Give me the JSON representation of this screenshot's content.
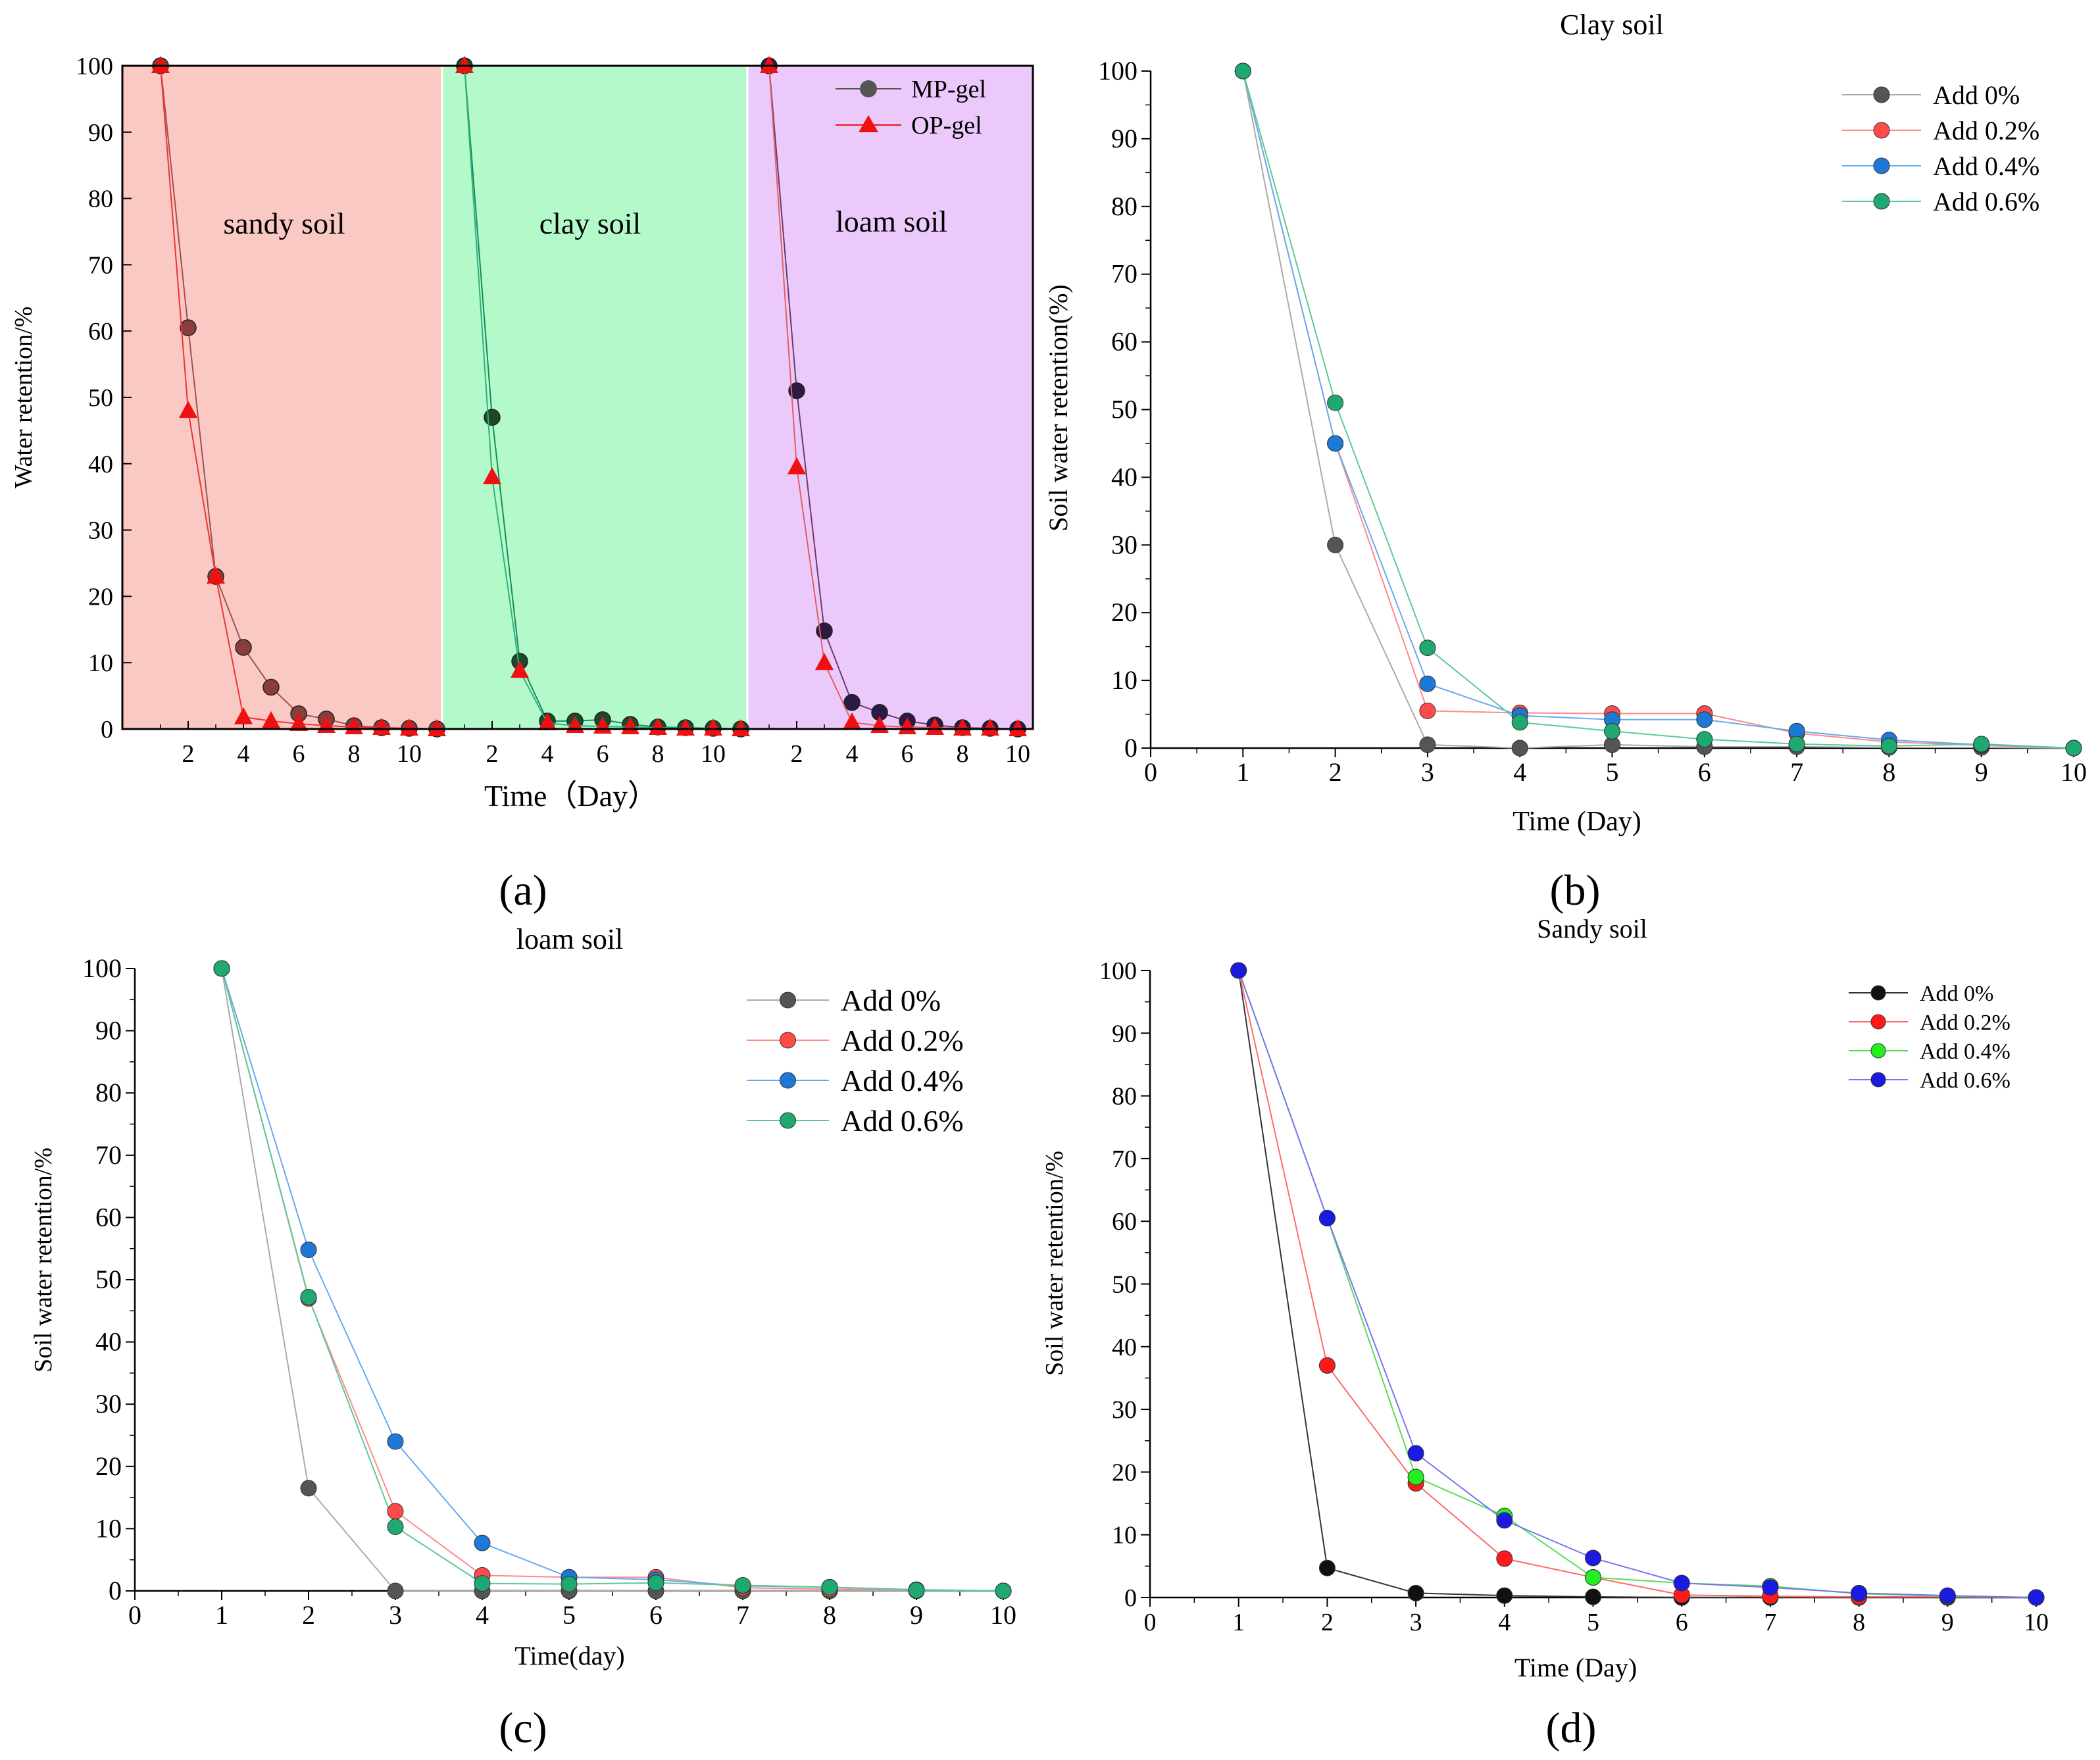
{
  "chart_data": [
    {
      "id": "a",
      "type": "line",
      "panel_label": "(a)",
      "title": "",
      "xlabel": "Time（Day）",
      "ylabel": "Water retention/%",
      "ylim": [
        0,
        100
      ],
      "yticks": [
        0,
        10,
        20,
        30,
        40,
        50,
        60,
        70,
        80,
        90,
        100
      ],
      "xticks": [
        "2",
        "4",
        "6",
        "8",
        "10"
      ],
      "regions": [
        {
          "label": "sandy soil",
          "color": "#fbc9c3",
          "day_range": [
            0,
            11.5
          ]
        },
        {
          "label": "clay soil",
          "color": "#b3f9c9",
          "day_range": [
            0,
            11.5
          ]
        },
        {
          "label": "loam soil",
          "color": "#ecc9fb",
          "day_range": [
            0,
            10.2
          ]
        }
      ],
      "legend": [
        {
          "name": "MP-gel",
          "marker": "circle",
          "color": "#555555"
        },
        {
          "name": "OP-gel",
          "marker": "triangle",
          "color": "#ee1111"
        }
      ],
      "series": [
        {
          "name": "MP-gel",
          "region": 0,
          "marker_color": "#8a3d3d",
          "line_color": "#a05050",
          "x": [
            1,
            2,
            3,
            4,
            5,
            6,
            7,
            8,
            9,
            10,
            11
          ],
          "y": [
            100,
            60.5,
            23,
            12.3,
            6.3,
            2.3,
            1.5,
            0.5,
            0.2,
            0.1,
            0
          ]
        },
        {
          "name": "OP-gel",
          "region": 0,
          "marker_color": "#ee1111",
          "line_color": "#ee3333",
          "x": [
            1,
            2,
            3,
            4,
            5,
            6,
            7,
            8,
            9,
            10,
            11
          ],
          "y": [
            100,
            48,
            23,
            1.8,
            1.2,
            0.8,
            0.5,
            0.3,
            0.2,
            0.1,
            0
          ]
        },
        {
          "name": "MP-gel",
          "region": 1,
          "marker_color": "#1a4a2a",
          "line_color": "#1a8a5a",
          "x": [
            1,
            2,
            3,
            4,
            5,
            6,
            7,
            8,
            9,
            10,
            11
          ],
          "y": [
            100,
            47,
            10.2,
            1.2,
            1.2,
            1.4,
            0.7,
            0.3,
            0.2,
            0.1,
            0
          ]
        },
        {
          "name": "OP-gel",
          "region": 1,
          "marker_color": "#ee1111",
          "line_color": "#30b080",
          "x": [
            1,
            2,
            3,
            4,
            5,
            6,
            7,
            8,
            9,
            10,
            11
          ],
          "y": [
            100,
            38,
            8.8,
            0.9,
            0.5,
            0.4,
            0.3,
            0.2,
            0.1,
            0.1,
            0
          ]
        },
        {
          "name": "MP-gel",
          "region": 2,
          "marker_color": "#2a1a45",
          "line_color": "#6a3a6a",
          "x": [
            1,
            2,
            3,
            4,
            5,
            6,
            7,
            8,
            9,
            10
          ],
          "y": [
            100,
            51,
            14.8,
            4,
            2.5,
            1.2,
            0.6,
            0.2,
            0.1,
            0
          ]
        },
        {
          "name": "OP-gel",
          "region": 2,
          "marker_color": "#ee1111",
          "line_color": "#e06060",
          "x": [
            1,
            2,
            3,
            4,
            5,
            6,
            7,
            8,
            9,
            10
          ],
          "y": [
            100,
            39.5,
            10,
            1,
            0.5,
            0.3,
            0.2,
            0.1,
            0.1,
            0
          ]
        }
      ]
    },
    {
      "id": "b",
      "type": "line",
      "panel_label": "(b)",
      "title": "Clay soil",
      "xlabel": "Time (Day)",
      "ylabel": "Soil water retention(%)",
      "xlim": [
        0,
        10
      ],
      "ylim": [
        0,
        100
      ],
      "xticks": [
        0,
        1,
        2,
        3,
        4,
        5,
        6,
        7,
        8,
        9,
        10
      ],
      "yticks": [
        0,
        10,
        20,
        30,
        40,
        50,
        60,
        70,
        80,
        90,
        100
      ],
      "x": [
        1,
        2,
        3,
        4,
        5,
        6,
        7,
        8,
        9,
        10
      ],
      "series": [
        {
          "name": "Add 0%",
          "marker_color": "#555555",
          "line_color": "#aaaaaa",
          "values": [
            100,
            30,
            0.5,
            0,
            0.5,
            0.2,
            0.2,
            0.1,
            0.1,
            0
          ]
        },
        {
          "name": "Add 0.2%",
          "marker_color": "#ff4a4a",
          "line_color": "#ff8a8a",
          "values": [
            100,
            45,
            5.5,
            5.2,
            5.1,
            5.1,
            2.2,
            0.9,
            0.4,
            0
          ]
        },
        {
          "name": "Add 0.4%",
          "marker_color": "#1e78d6",
          "line_color": "#66aaee",
          "values": [
            100,
            45,
            9.5,
            4.8,
            4.2,
            4.2,
            2.5,
            1.2,
            0.5,
            0
          ]
        },
        {
          "name": "Add 0.6%",
          "marker_color": "#1fa870",
          "line_color": "#5cc99a",
          "values": [
            100,
            51,
            14.8,
            3.8,
            2.5,
            1.3,
            0.6,
            0.3,
            0.6,
            0
          ]
        }
      ]
    },
    {
      "id": "c",
      "type": "line",
      "panel_label": "(c)",
      "title": "loam soil",
      "xlabel": "Time(day)",
      "ylabel": "Soil water retention/%",
      "xlim": [
        0,
        10
      ],
      "ylim": [
        0,
        100
      ],
      "xticks": [
        0,
        1,
        2,
        3,
        4,
        5,
        6,
        7,
        8,
        9,
        10
      ],
      "yticks": [
        0,
        10,
        20,
        30,
        40,
        50,
        60,
        70,
        80,
        90,
        100
      ],
      "x": [
        1,
        2,
        3,
        4,
        5,
        6,
        7,
        8,
        9,
        10
      ],
      "series": [
        {
          "name": "Add 0%",
          "marker_color": "#555555",
          "line_color": "#aaaaaa",
          "values": [
            100,
            16.5,
            0,
            0,
            0,
            0,
            0,
            0,
            0,
            0
          ]
        },
        {
          "name": "Add 0.2%",
          "marker_color": "#ff4a4a",
          "line_color": "#ff8a8a",
          "values": [
            100,
            47,
            12.8,
            2.5,
            2.2,
            2.2,
            0.5,
            0.3,
            0.1,
            0
          ]
        },
        {
          "name": "Add 0.4%",
          "marker_color": "#1e78d6",
          "line_color": "#66aaee",
          "values": [
            100,
            54.8,
            24,
            7.7,
            2.2,
            1.8,
            0.8,
            0.6,
            0.2,
            0
          ]
        },
        {
          "name": "Add 0.6%",
          "marker_color": "#1fa870",
          "line_color": "#5cc99a",
          "values": [
            100,
            47.2,
            10.3,
            1.2,
            1.1,
            1.3,
            0.9,
            0.6,
            0.1,
            0
          ]
        }
      ]
    },
    {
      "id": "d",
      "type": "line",
      "panel_label": "(d)",
      "title": "Sandy soil",
      "xlabel": "Time (Day)",
      "ylabel": "Soil water retention/%",
      "xlim": [
        0,
        10
      ],
      "ylim": [
        0,
        100
      ],
      "xticks": [
        0,
        1,
        2,
        3,
        4,
        5,
        6,
        7,
        8,
        9,
        10
      ],
      "yticks": [
        0,
        10,
        20,
        30,
        40,
        50,
        60,
        70,
        80,
        90,
        100
      ],
      "x": [
        1,
        2,
        3,
        4,
        5,
        6,
        7,
        8,
        9,
        10
      ],
      "series": [
        {
          "name": "Add 0%",
          "marker_color": "#111111",
          "line_color": "#333333",
          "values": [
            100,
            4.7,
            0.7,
            0.3,
            0.1,
            0,
            0,
            0,
            0,
            0
          ]
        },
        {
          "name": "Add 0.2%",
          "marker_color": "#ff1a1a",
          "line_color": "#ff6a6a",
          "values": [
            100,
            37,
            18.2,
            6.2,
            3.2,
            0.4,
            0.2,
            0.1,
            0.1,
            0
          ]
        },
        {
          "name": "Add 0.4%",
          "marker_color": "#22ee22",
          "line_color": "#55dd55",
          "values": [
            100,
            60.5,
            19.2,
            13,
            3.2,
            2.3,
            1.8,
            0.6,
            0.2,
            0
          ]
        },
        {
          "name": "Add 0.6%",
          "marker_color": "#1a1ae0",
          "line_color": "#7777ee",
          "values": [
            100,
            60.5,
            23,
            12.3,
            6.3,
            2.3,
            1.6,
            0.7,
            0.3,
            0
          ]
        }
      ]
    }
  ]
}
